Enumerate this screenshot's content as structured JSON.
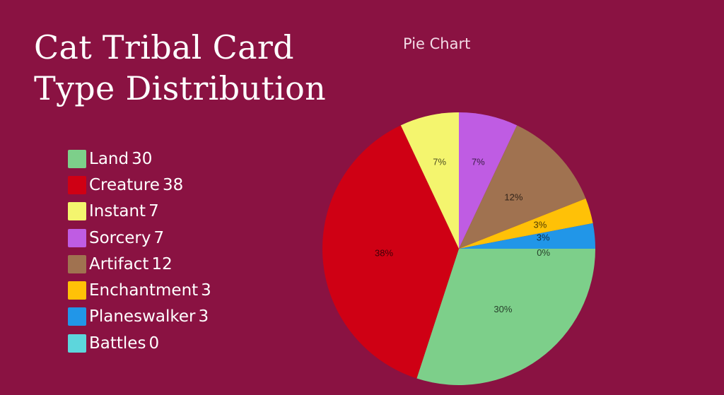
{
  "title_lines": [
    "Cat Tribal Card",
    "Type Distribution"
  ],
  "chart_title": "Pie Chart",
  "legend": [
    {
      "label": "Land",
      "value": "30",
      "color": "#7dcf8a"
    },
    {
      "label": "Creature",
      "value": "38",
      "color": "#cf0014"
    },
    {
      "label": "Instant",
      "value": "7",
      "color": "#f4f56e"
    },
    {
      "label": "Sorcery",
      "value": "7",
      "color": "#bf5ce3"
    },
    {
      "label": "Artifact",
      "value": "12",
      "color": "#a07250"
    },
    {
      "label": "Enchantment",
      "value": "3",
      "color": "#ffc107"
    },
    {
      "label": "Planeswalker",
      "value": "3",
      "color": "#2196e8"
    },
    {
      "label": "Battles",
      "value": "0",
      "color": "#5dd6dc"
    }
  ],
  "chart_data": {
    "type": "pie",
    "title": "Pie Chart",
    "categories": [
      "Land",
      "Creature",
      "Instant",
      "Sorcery",
      "Artifact",
      "Enchantment",
      "Planeswalker",
      "Battles"
    ],
    "values": [
      30,
      38,
      7,
      7,
      12,
      3,
      3,
      0
    ],
    "percent_labels": [
      "30%",
      "38%",
      "7%",
      "7%",
      "12%",
      "3%",
      "3%",
      "0%"
    ],
    "colors": [
      "#7dcf8a",
      "#cf0014",
      "#f4f56e",
      "#bf5ce3",
      "#a07250",
      "#ffc107",
      "#2196e8",
      "#5dd6dc"
    ],
    "start_angle_deg": 0,
    "direction": "clockwise",
    "legend_position": "left"
  }
}
